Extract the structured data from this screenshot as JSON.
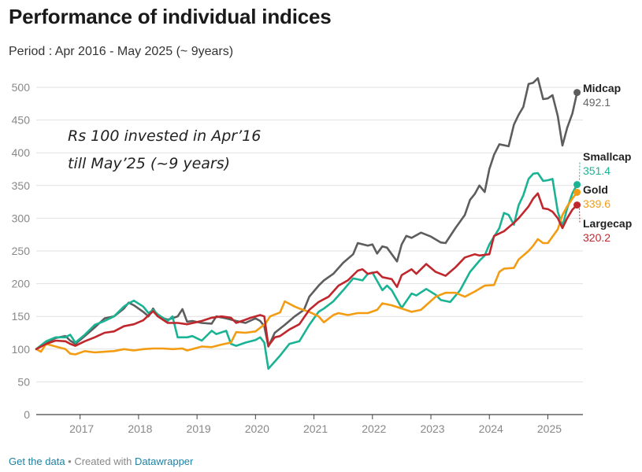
{
  "header": {
    "title": "Performance of individual indices",
    "subtitle": "Period : Apr 2016 - May 2025 (~ 9years)"
  },
  "annotation": {
    "line1": "Rs 100 invested in Apr’16",
    "line2": "till May’25 (~9 years)"
  },
  "footer": {
    "get_data": "Get the data",
    "separator": " • Created with ",
    "tool": "Datawrapper"
  },
  "chart_data": {
    "type": "line",
    "title": "Performance of individual indices",
    "subtitle": "Period : Apr 2016 - May 2025 (~ 9years)",
    "xlabel": "",
    "ylabel": "",
    "ylim": [
      0,
      520
    ],
    "xlim": [
      2016.25,
      2025.6
    ],
    "y_ticks": [
      0,
      50,
      100,
      150,
      200,
      250,
      300,
      350,
      400,
      450,
      500
    ],
    "x_ticks": [
      2017,
      2018,
      2019,
      2020,
      2021,
      2022,
      2023,
      2024,
      2025
    ],
    "grid": true,
    "legend": "end-labels",
    "series": [
      {
        "name": "Midcap",
        "end_label": "492.1",
        "color": "#5d5d5d",
        "points": [
          [
            2016.25,
            100
          ],
          [
            2016.42,
            110
          ],
          [
            2016.58,
            117
          ],
          [
            2016.75,
            120
          ],
          [
            2016.83,
            113
          ],
          [
            2016.92,
            108
          ],
          [
            2017.08,
            120
          ],
          [
            2017.25,
            133
          ],
          [
            2017.42,
            147
          ],
          [
            2017.58,
            150
          ],
          [
            2017.75,
            162
          ],
          [
            2017.83,
            171
          ],
          [
            2017.92,
            167
          ],
          [
            2018.08,
            157
          ],
          [
            2018.17,
            150
          ],
          [
            2018.25,
            162
          ],
          [
            2018.33,
            150
          ],
          [
            2018.5,
            145
          ],
          [
            2018.67,
            150
          ],
          [
            2018.75,
            161
          ],
          [
            2018.83,
            142
          ],
          [
            2018.92,
            143
          ],
          [
            2019.08,
            140
          ],
          [
            2019.25,
            139
          ],
          [
            2019.33,
            150
          ],
          [
            2019.5,
            147
          ],
          [
            2019.67,
            143
          ],
          [
            2019.83,
            140
          ],
          [
            2020.0,
            147
          ],
          [
            2020.08,
            143
          ],
          [
            2020.15,
            135
          ],
          [
            2020.22,
            104
          ],
          [
            2020.33,
            125
          ],
          [
            2020.5,
            137
          ],
          [
            2020.67,
            150
          ],
          [
            2020.83,
            160
          ],
          [
            2020.92,
            180
          ],
          [
            2021.08,
            197
          ],
          [
            2021.17,
            205
          ],
          [
            2021.33,
            215
          ],
          [
            2021.5,
            232
          ],
          [
            2021.67,
            245
          ],
          [
            2021.75,
            262
          ],
          [
            2021.92,
            258
          ],
          [
            2022.0,
            260
          ],
          [
            2022.08,
            246
          ],
          [
            2022.17,
            257
          ],
          [
            2022.25,
            255
          ],
          [
            2022.42,
            234
          ],
          [
            2022.5,
            260
          ],
          [
            2022.58,
            273
          ],
          [
            2022.67,
            270
          ],
          [
            2022.83,
            278
          ],
          [
            2023.0,
            272
          ],
          [
            2023.17,
            263
          ],
          [
            2023.25,
            262
          ],
          [
            2023.42,
            285
          ],
          [
            2023.58,
            305
          ],
          [
            2023.67,
            328
          ],
          [
            2023.75,
            337
          ],
          [
            2023.83,
            350
          ],
          [
            2023.92,
            340
          ],
          [
            2024.0,
            375
          ],
          [
            2024.08,
            397
          ],
          [
            2024.17,
            413
          ],
          [
            2024.33,
            410
          ],
          [
            2024.42,
            443
          ],
          [
            2024.5,
            458
          ],
          [
            2024.58,
            470
          ],
          [
            2024.67,
            505
          ],
          [
            2024.75,
            507
          ],
          [
            2024.83,
            514
          ],
          [
            2024.92,
            482
          ],
          [
            2025.0,
            483
          ],
          [
            2025.08,
            488
          ],
          [
            2025.17,
            456
          ],
          [
            2025.25,
            411
          ],
          [
            2025.33,
            438
          ],
          [
            2025.42,
            460
          ],
          [
            2025.5,
            492.1
          ]
        ]
      },
      {
        "name": "Smallcap",
        "end_label": "351.4",
        "color": "#1ab394",
        "points": [
          [
            2016.25,
            100
          ],
          [
            2016.42,
            112
          ],
          [
            2016.58,
            118
          ],
          [
            2016.75,
            118
          ],
          [
            2016.83,
            122
          ],
          [
            2016.92,
            110
          ],
          [
            2017.08,
            122
          ],
          [
            2017.25,
            137
          ],
          [
            2017.42,
            143
          ],
          [
            2017.58,
            150
          ],
          [
            2017.75,
            165
          ],
          [
            2017.83,
            170
          ],
          [
            2017.92,
            174
          ],
          [
            2018.08,
            165
          ],
          [
            2018.17,
            155
          ],
          [
            2018.25,
            160
          ],
          [
            2018.33,
            153
          ],
          [
            2018.5,
            143
          ],
          [
            2018.58,
            150
          ],
          [
            2018.67,
            118
          ],
          [
            2018.83,
            118
          ],
          [
            2018.92,
            120
          ],
          [
            2019.08,
            113
          ],
          [
            2019.25,
            128
          ],
          [
            2019.33,
            123
          ],
          [
            2019.5,
            128
          ],
          [
            2019.58,
            108
          ],
          [
            2019.67,
            105
          ],
          [
            2019.83,
            110
          ],
          [
            2020.0,
            114
          ],
          [
            2020.08,
            118
          ],
          [
            2020.15,
            110
          ],
          [
            2020.22,
            70
          ],
          [
            2020.3,
            78
          ],
          [
            2020.42,
            90
          ],
          [
            2020.58,
            108
          ],
          [
            2020.75,
            112
          ],
          [
            2020.92,
            137
          ],
          [
            2021.08,
            157
          ],
          [
            2021.17,
            162
          ],
          [
            2021.33,
            173
          ],
          [
            2021.5,
            190
          ],
          [
            2021.67,
            208
          ],
          [
            2021.83,
            205
          ],
          [
            2021.92,
            215
          ],
          [
            2022.0,
            217
          ],
          [
            2022.17,
            190
          ],
          [
            2022.25,
            197
          ],
          [
            2022.33,
            190
          ],
          [
            2022.5,
            163
          ],
          [
            2022.67,
            185
          ],
          [
            2022.75,
            182
          ],
          [
            2022.92,
            192
          ],
          [
            2023.08,
            183
          ],
          [
            2023.17,
            175
          ],
          [
            2023.33,
            172
          ],
          [
            2023.5,
            190
          ],
          [
            2023.67,
            218
          ],
          [
            2023.83,
            235
          ],
          [
            2023.92,
            243
          ],
          [
            2024.0,
            260
          ],
          [
            2024.17,
            285
          ],
          [
            2024.25,
            308
          ],
          [
            2024.33,
            305
          ],
          [
            2024.42,
            290
          ],
          [
            2024.5,
            320
          ],
          [
            2024.58,
            335
          ],
          [
            2024.67,
            360
          ],
          [
            2024.75,
            368
          ],
          [
            2024.83,
            369
          ],
          [
            2024.92,
            357
          ],
          [
            2025.0,
            358
          ],
          [
            2025.08,
            360
          ],
          [
            2025.17,
            310
          ],
          [
            2025.25,
            288
          ],
          [
            2025.33,
            315
          ],
          [
            2025.42,
            338
          ],
          [
            2025.5,
            351.4
          ]
        ]
      },
      {
        "name": "Gold",
        "end_label": "339.6",
        "color": "#f39c12",
        "points": [
          [
            2016.25,
            100
          ],
          [
            2016.33,
            96
          ],
          [
            2016.42,
            108
          ],
          [
            2016.58,
            104
          ],
          [
            2016.75,
            100
          ],
          [
            2016.83,
            93
          ],
          [
            2016.92,
            92
          ],
          [
            2017.08,
            97
          ],
          [
            2017.25,
            95
          ],
          [
            2017.42,
            96
          ],
          [
            2017.58,
            97
          ],
          [
            2017.75,
            100
          ],
          [
            2017.92,
            98
          ],
          [
            2018.08,
            100
          ],
          [
            2018.25,
            101
          ],
          [
            2018.42,
            101
          ],
          [
            2018.58,
            100
          ],
          [
            2018.75,
            101
          ],
          [
            2018.83,
            98
          ],
          [
            2018.92,
            100
          ],
          [
            2019.08,
            104
          ],
          [
            2019.25,
            103
          ],
          [
            2019.42,
            107
          ],
          [
            2019.58,
            110
          ],
          [
            2019.67,
            126
          ],
          [
            2019.83,
            125
          ],
          [
            2020.0,
            127
          ],
          [
            2020.17,
            139
          ],
          [
            2020.25,
            150
          ],
          [
            2020.42,
            156
          ],
          [
            2020.5,
            173
          ],
          [
            2020.67,
            165
          ],
          [
            2020.75,
            162
          ],
          [
            2020.92,
            157
          ],
          [
            2021.08,
            150
          ],
          [
            2021.17,
            141
          ],
          [
            2021.33,
            152
          ],
          [
            2021.42,
            155
          ],
          [
            2021.58,
            152
          ],
          [
            2021.75,
            155
          ],
          [
            2021.92,
            155
          ],
          [
            2022.08,
            160
          ],
          [
            2022.17,
            170
          ],
          [
            2022.33,
            167
          ],
          [
            2022.5,
            162
          ],
          [
            2022.67,
            157
          ],
          [
            2022.83,
            160
          ],
          [
            2023.08,
            180
          ],
          [
            2023.25,
            186
          ],
          [
            2023.42,
            186
          ],
          [
            2023.58,
            180
          ],
          [
            2023.75,
            188
          ],
          [
            2023.92,
            197
          ],
          [
            2024.08,
            198
          ],
          [
            2024.17,
            218
          ],
          [
            2024.25,
            223
          ],
          [
            2024.42,
            224
          ],
          [
            2024.5,
            237
          ],
          [
            2024.67,
            250
          ],
          [
            2024.75,
            258
          ],
          [
            2024.83,
            268
          ],
          [
            2024.92,
            262
          ],
          [
            2025.0,
            262
          ],
          [
            2025.08,
            272
          ],
          [
            2025.17,
            283
          ],
          [
            2025.25,
            305
          ],
          [
            2025.33,
            318
          ],
          [
            2025.42,
            330
          ],
          [
            2025.5,
            339.6
          ]
        ]
      },
      {
        "name": "Largecap",
        "end_label": "320.2",
        "color": "#c0272d",
        "points": [
          [
            2016.25,
            100
          ],
          [
            2016.42,
            108
          ],
          [
            2016.58,
            113
          ],
          [
            2016.75,
            112
          ],
          [
            2016.83,
            108
          ],
          [
            2016.92,
            105
          ],
          [
            2017.08,
            112
          ],
          [
            2017.25,
            118
          ],
          [
            2017.42,
            125
          ],
          [
            2017.58,
            127
          ],
          [
            2017.75,
            135
          ],
          [
            2017.92,
            138
          ],
          [
            2018.08,
            144
          ],
          [
            2018.25,
            158
          ],
          [
            2018.33,
            150
          ],
          [
            2018.5,
            140
          ],
          [
            2018.67,
            140
          ],
          [
            2018.83,
            138
          ],
          [
            2019.08,
            143
          ],
          [
            2019.25,
            148
          ],
          [
            2019.42,
            150
          ],
          [
            2019.58,
            148
          ],
          [
            2019.67,
            140
          ],
          [
            2019.83,
            145
          ],
          [
            2019.92,
            148
          ],
          [
            2020.08,
            152
          ],
          [
            2020.15,
            150
          ],
          [
            2020.22,
            105
          ],
          [
            2020.33,
            118
          ],
          [
            2020.42,
            120
          ],
          [
            2020.58,
            130
          ],
          [
            2020.75,
            138
          ],
          [
            2020.92,
            160
          ],
          [
            2021.08,
            172
          ],
          [
            2021.25,
            180
          ],
          [
            2021.42,
            197
          ],
          [
            2021.58,
            205
          ],
          [
            2021.75,
            220
          ],
          [
            2021.83,
            222
          ],
          [
            2021.92,
            215
          ],
          [
            2022.08,
            218
          ],
          [
            2022.17,
            210
          ],
          [
            2022.33,
            207
          ],
          [
            2022.42,
            195
          ],
          [
            2022.5,
            213
          ],
          [
            2022.67,
            222
          ],
          [
            2022.75,
            215
          ],
          [
            2022.92,
            230
          ],
          [
            2023.08,
            218
          ],
          [
            2023.25,
            212
          ],
          [
            2023.42,
            225
          ],
          [
            2023.58,
            240
          ],
          [
            2023.75,
            245
          ],
          [
            2023.83,
            243
          ],
          [
            2024.0,
            245
          ],
          [
            2024.08,
            273
          ],
          [
            2024.25,
            280
          ],
          [
            2024.42,
            293
          ],
          [
            2024.5,
            300
          ],
          [
            2024.67,
            318
          ],
          [
            2024.75,
            330
          ],
          [
            2024.83,
            338
          ],
          [
            2024.92,
            315
          ],
          [
            2025.0,
            314
          ],
          [
            2025.08,
            310
          ],
          [
            2025.17,
            300
          ],
          [
            2025.25,
            285
          ],
          [
            2025.33,
            300
          ],
          [
            2025.42,
            313
          ],
          [
            2025.5,
            320.2
          ]
        ]
      }
    ]
  }
}
